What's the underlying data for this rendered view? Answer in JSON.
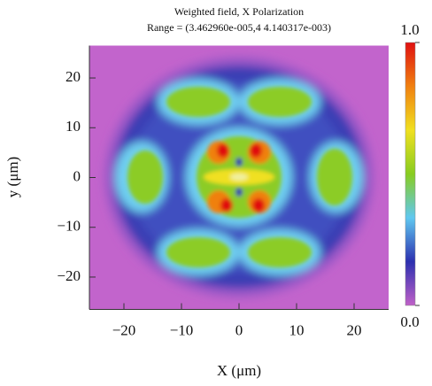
{
  "chart_data": {
    "type": "heatmap",
    "title": "Weighted field, X Polarization",
    "subtitle": "Range = (3.462960e-005,4 4.140317e-003)",
    "x_label": "X (μm)",
    "y_label": "y (μm)",
    "xlim": [
      -26,
      26
    ],
    "ylim": [
      -26.5,
      26.5
    ],
    "xticks": [
      {
        "value": -20,
        "label": "−20"
      },
      {
        "value": -10,
        "label": "−10"
      },
      0,
      10,
      20
    ],
    "yticks": [
      {
        "value": -20,
        "label": "−20"
      },
      {
        "value": -10,
        "label": "−10"
      },
      0,
      10,
      20
    ],
    "colorbar": {
      "lim": [
        0,
        1
      ],
      "ticks": [
        {
          "value": 0,
          "label": "0.0"
        },
        {
          "value": 1,
          "label": "1.0"
        }
      ],
      "colors": [
        "#c060c8",
        "#2c30b0",
        "#60c8f0",
        "#88cc20",
        "#f0e020",
        "#f08010",
        "#e01010"
      ]
    }
  }
}
